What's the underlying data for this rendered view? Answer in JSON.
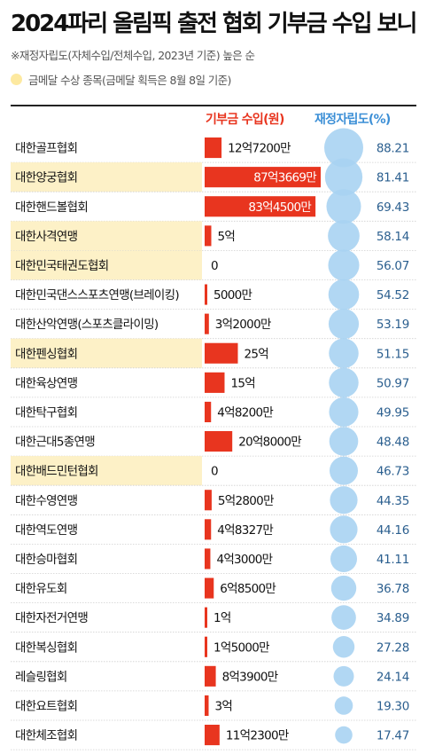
{
  "title": "2024파리 올림픽 출전 협회 기부금 수입 보니",
  "subtitle": "※재정자립도(자체수입/전체수입, 2023년 기준) 높은 순",
  "legend": "금메달 수상 종목(금메달 획득은 8월 8일 기준)",
  "colors": {
    "bar": "#e8351f",
    "bubble": "#a9d3f2",
    "gold_highlight": "#fdf1c7",
    "ratio_text": "#2b5f8f"
  },
  "chart_data": {
    "type": "bar",
    "title": "2024파리 올림픽 출전 협회 기부금 수입 보니",
    "column_headers": [
      "기부금 수입(원)",
      "재정자립도(%)"
    ],
    "categories": [
      "대한골프협회",
      "대한양궁협회",
      "대한핸드볼협회",
      "대한사격연맹",
      "대한민국태권도협회",
      "대한민국댄스스포츠연맹(브레이킹)",
      "대한산악연맹(스포츠클라이밍)",
      "대한펜싱협회",
      "대한육상연맹",
      "대한탁구협회",
      "대한근대5종연맹",
      "대한배드민턴협회",
      "대한수영연맹",
      "대한역도연맹",
      "대한승마협회",
      "대한유도회",
      "대한자전거연맹",
      "대한복싱협회",
      "레슬링협회",
      "대한요트협회",
      "대한체조협회"
    ],
    "gold_medal": [
      false,
      true,
      false,
      true,
      true,
      false,
      false,
      true,
      false,
      false,
      false,
      true,
      false,
      false,
      false,
      false,
      false,
      false,
      false,
      false,
      false
    ],
    "series": [
      {
        "name": "기부금 수입(원)",
        "labels": [
          "12억7200만",
          "87억3669만",
          "83억4500만",
          "5억",
          "0",
          "5000만",
          "3억2000만",
          "25억",
          "15억",
          "4억8200만",
          "20억8000만",
          "0",
          "5억2800만",
          "4억8327만",
          "4억3000만",
          "6억8500만",
          "1억",
          "1억5000만",
          "8억3900만",
          "3억",
          "11억2300만"
        ],
        "values": [
          1272000000,
          8736690000,
          8345000000,
          500000000,
          0,
          50000000,
          320000000,
          2500000000,
          1500000000,
          482000000,
          2080000000,
          0,
          528000000,
          483270000,
          430000000,
          685000000,
          100000000,
          150000000,
          839000000,
          300000000,
          1123000000
        ]
      },
      {
        "name": "재정자립도(%)",
        "labels": [
          "88.21",
          "81.41",
          "69.43",
          "58.14",
          "56.07",
          "54.52",
          "53.19",
          "51.15",
          "50.97",
          "49.95",
          "48.48",
          "46.73",
          "44.35",
          "44.16",
          "41.11",
          "36.78",
          "34.89",
          "27.28",
          "24.14",
          "19.30",
          "17.47"
        ],
        "values": [
          88.21,
          81.41,
          69.43,
          58.14,
          56.07,
          54.52,
          53.19,
          51.15,
          50.97,
          49.95,
          48.48,
          46.73,
          44.35,
          44.16,
          41.11,
          36.78,
          34.89,
          27.28,
          24.14,
          19.3,
          17.47
        ]
      }
    ]
  }
}
